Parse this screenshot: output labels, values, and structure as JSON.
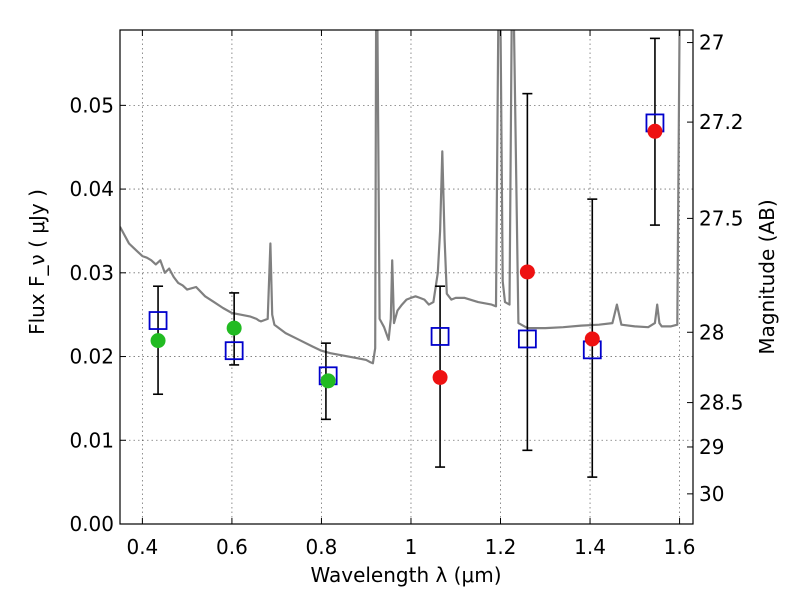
{
  "chart_data": {
    "type": "scatter",
    "title": "",
    "xlabel": "Wavelength λ (μm)",
    "ylabel": "Flux F_ν ( μJy )",
    "y2label": "Magnitude (AB)",
    "xlim": [
      0.35,
      1.63
    ],
    "ylim": [
      0.0,
      0.059
    ],
    "grid": true,
    "x_ticks": [
      0.4,
      0.6,
      0.8,
      1.0,
      1.2,
      1.4,
      1.6
    ],
    "x_tick_labels": [
      "0.4",
      "0.6",
      "0.8",
      "1",
      "1.2",
      "1.4",
      "1.6"
    ],
    "y_ticks": [
      0.0,
      0.01,
      0.02,
      0.03,
      0.04,
      0.05
    ],
    "y_tick_labels": [
      "0.00",
      "0.01",
      "0.02",
      "0.03",
      "0.04",
      "0.05"
    ],
    "y2_ticks": [
      {
        "label": "27",
        "flux": 0.0575
      },
      {
        "label": "27.2",
        "flux": 0.048
      },
      {
        "label": "27.5",
        "flux": 0.0365
      },
      {
        "label": "28",
        "flux": 0.0229
      },
      {
        "label": "28.5",
        "flux": 0.0145
      },
      {
        "label": "29",
        "flux": 0.0092
      },
      {
        "label": "30",
        "flux": 0.0036
      }
    ],
    "colors": {
      "model": "#808080",
      "observed": "#0000cc",
      "green": "#22bb22",
      "red": "#ee1111",
      "errorbar": "#000000"
    },
    "model_spectrum": {
      "x": [
        0.35,
        0.36,
        0.37,
        0.38,
        0.39,
        0.4,
        0.41,
        0.42,
        0.43,
        0.44,
        0.45,
        0.46,
        0.47,
        0.48,
        0.49,
        0.5,
        0.52,
        0.54,
        0.56,
        0.58,
        0.6,
        0.62,
        0.64,
        0.655,
        0.66,
        0.665,
        0.68,
        0.686,
        0.69,
        0.695,
        0.72,
        0.75,
        0.78,
        0.8,
        0.82,
        0.85,
        0.88,
        0.9,
        0.91,
        0.915,
        0.92,
        0.922,
        0.925,
        0.93,
        0.935,
        0.94,
        0.95,
        0.955,
        0.958,
        0.962,
        0.97,
        0.98,
        0.99,
        1.0,
        1.01,
        1.02,
        1.03,
        1.04,
        1.05,
        1.06,
        1.065,
        1.07,
        1.075,
        1.08,
        1.09,
        1.1,
        1.12,
        1.15,
        1.18,
        1.19,
        1.195,
        1.2,
        1.205,
        1.21,
        1.22,
        1.225,
        1.23,
        1.24,
        1.26,
        1.3,
        1.34,
        1.38,
        1.42,
        1.45,
        1.46,
        1.47,
        1.5,
        1.53,
        1.545,
        1.55,
        1.555,
        1.56,
        1.58,
        1.595,
        1.6,
        1.605,
        1.63
      ],
      "y": [
        0.0355,
        0.0345,
        0.0335,
        0.033,
        0.0325,
        0.032,
        0.0318,
        0.0315,
        0.031,
        0.0315,
        0.03,
        0.0305,
        0.0295,
        0.0288,
        0.0285,
        0.028,
        0.0283,
        0.0272,
        0.0265,
        0.0258,
        0.0252,
        0.025,
        0.0248,
        0.0245,
        0.0243,
        0.0242,
        0.0245,
        0.0335,
        0.025,
        0.0238,
        0.0228,
        0.022,
        0.0212,
        0.0207,
        0.0204,
        0.0201,
        0.0198,
        0.0196,
        0.0193,
        0.0192,
        0.021,
        0.06,
        0.06,
        0.0245,
        0.024,
        0.0235,
        0.022,
        0.0245,
        0.0315,
        0.024,
        0.0255,
        0.0262,
        0.0268,
        0.027,
        0.0272,
        0.027,
        0.0268,
        0.0262,
        0.0265,
        0.03,
        0.035,
        0.0445,
        0.034,
        0.0275,
        0.0268,
        0.027,
        0.027,
        0.0265,
        0.0262,
        0.026,
        0.06,
        0.06,
        0.029,
        0.0265,
        0.0262,
        0.06,
        0.06,
        0.024,
        0.0234,
        0.0234,
        0.0235,
        0.0237,
        0.0238,
        0.024,
        0.0262,
        0.0238,
        0.0236,
        0.0235,
        0.024,
        0.0262,
        0.024,
        0.0236,
        0.0236,
        0.0238,
        0.06,
        0.06,
        0.06
      ]
    },
    "observed_squares": [
      {
        "x": 0.435,
        "y": 0.0243
      },
      {
        "x": 0.605,
        "y": 0.0207
      },
      {
        "x": 0.815,
        "y": 0.0177
      },
      {
        "x": 1.065,
        "y": 0.0224
      },
      {
        "x": 1.26,
        "y": 0.0221
      },
      {
        "x": 1.405,
        "y": 0.0208
      },
      {
        "x": 1.545,
        "y": 0.0479
      }
    ],
    "error_bars": [
      {
        "x": 0.435,
        "ylo": 0.0155,
        "yhi": 0.0284
      },
      {
        "x": 0.605,
        "ylo": 0.019,
        "yhi": 0.0276
      },
      {
        "x": 0.81,
        "ylo": 0.0125,
        "yhi": 0.0216
      },
      {
        "x": 1.065,
        "ylo": 0.0068,
        "yhi": 0.0284
      },
      {
        "x": 1.26,
        "ylo": 0.0088,
        "yhi": 0.0514
      },
      {
        "x": 1.405,
        "ylo": 0.0056,
        "yhi": 0.0388
      },
      {
        "x": 1.545,
        "ylo": 0.0357,
        "yhi": 0.058
      }
    ],
    "green_points": [
      {
        "x": 0.435,
        "y": 0.0219
      },
      {
        "x": 0.605,
        "y": 0.0234
      },
      {
        "x": 0.815,
        "y": 0.0171
      }
    ],
    "red_points": [
      {
        "x": 1.065,
        "y": 0.0175
      },
      {
        "x": 1.26,
        "y": 0.0301
      },
      {
        "x": 1.405,
        "y": 0.0221
      },
      {
        "x": 1.545,
        "y": 0.0469
      }
    ]
  }
}
